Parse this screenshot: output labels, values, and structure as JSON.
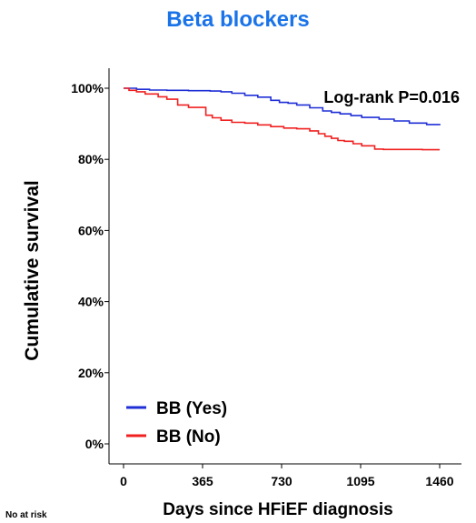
{
  "chart_data": {
    "type": "line",
    "title": "Beta blockers",
    "xlabel": "Days since HFiEF diagnosis",
    "ylabel": "Cumulative survival",
    "xlim": [
      0,
      1460
    ],
    "ylim": [
      0,
      100
    ],
    "x_ticks": [
      "0",
      "365",
      "730",
      "1095",
      "1460"
    ],
    "y_ticks": [
      "0%",
      "20%",
      "40%",
      "60%",
      "80%",
      "100%"
    ],
    "annotation": "Log-rank P=0.016",
    "grid": false,
    "legend_position": "bottom-left",
    "series": [
      {
        "name": "BB (Yes)",
        "color": "#1f2fd6",
        "x": [
          0,
          60,
          120,
          200,
          300,
          400,
          450,
          500,
          560,
          620,
          680,
          720,
          760,
          800,
          860,
          920,
          960,
          1000,
          1050,
          1100,
          1180,
          1250,
          1320,
          1400,
          1460
        ],
        "y": [
          100,
          99.7,
          99.5,
          99.4,
          99.3,
          99.2,
          99.0,
          98.6,
          98.0,
          97.5,
          96.6,
          96.0,
          95.8,
          95.3,
          94.5,
          93.6,
          93.2,
          92.8,
          92.3,
          91.8,
          91.3,
          90.8,
          90.2,
          89.8,
          89.6
        ]
      },
      {
        "name": "BB (No)",
        "color": "#f02020",
        "x": [
          0,
          25,
          60,
          100,
          160,
          200,
          250,
          300,
          340,
          380,
          410,
          450,
          500,
          560,
          620,
          680,
          740,
          800,
          860,
          900,
          930,
          960,
          990,
          1020,
          1060,
          1100,
          1130,
          1160,
          1200,
          1300,
          1380,
          1460
        ],
        "y": [
          100,
          99.4,
          99.0,
          98.4,
          97.6,
          96.9,
          95.3,
          94.6,
          94.6,
          92.4,
          91.7,
          91.0,
          90.4,
          90.2,
          89.7,
          89.2,
          88.8,
          88.6,
          88.0,
          87.2,
          86.5,
          85.9,
          85.3,
          85.1,
          84.4,
          83.8,
          83.8,
          82.9,
          82.8,
          82.8,
          82.7,
          82.7
        ]
      }
    ]
  },
  "footer": {
    "risk_table_label": "No at risk"
  }
}
